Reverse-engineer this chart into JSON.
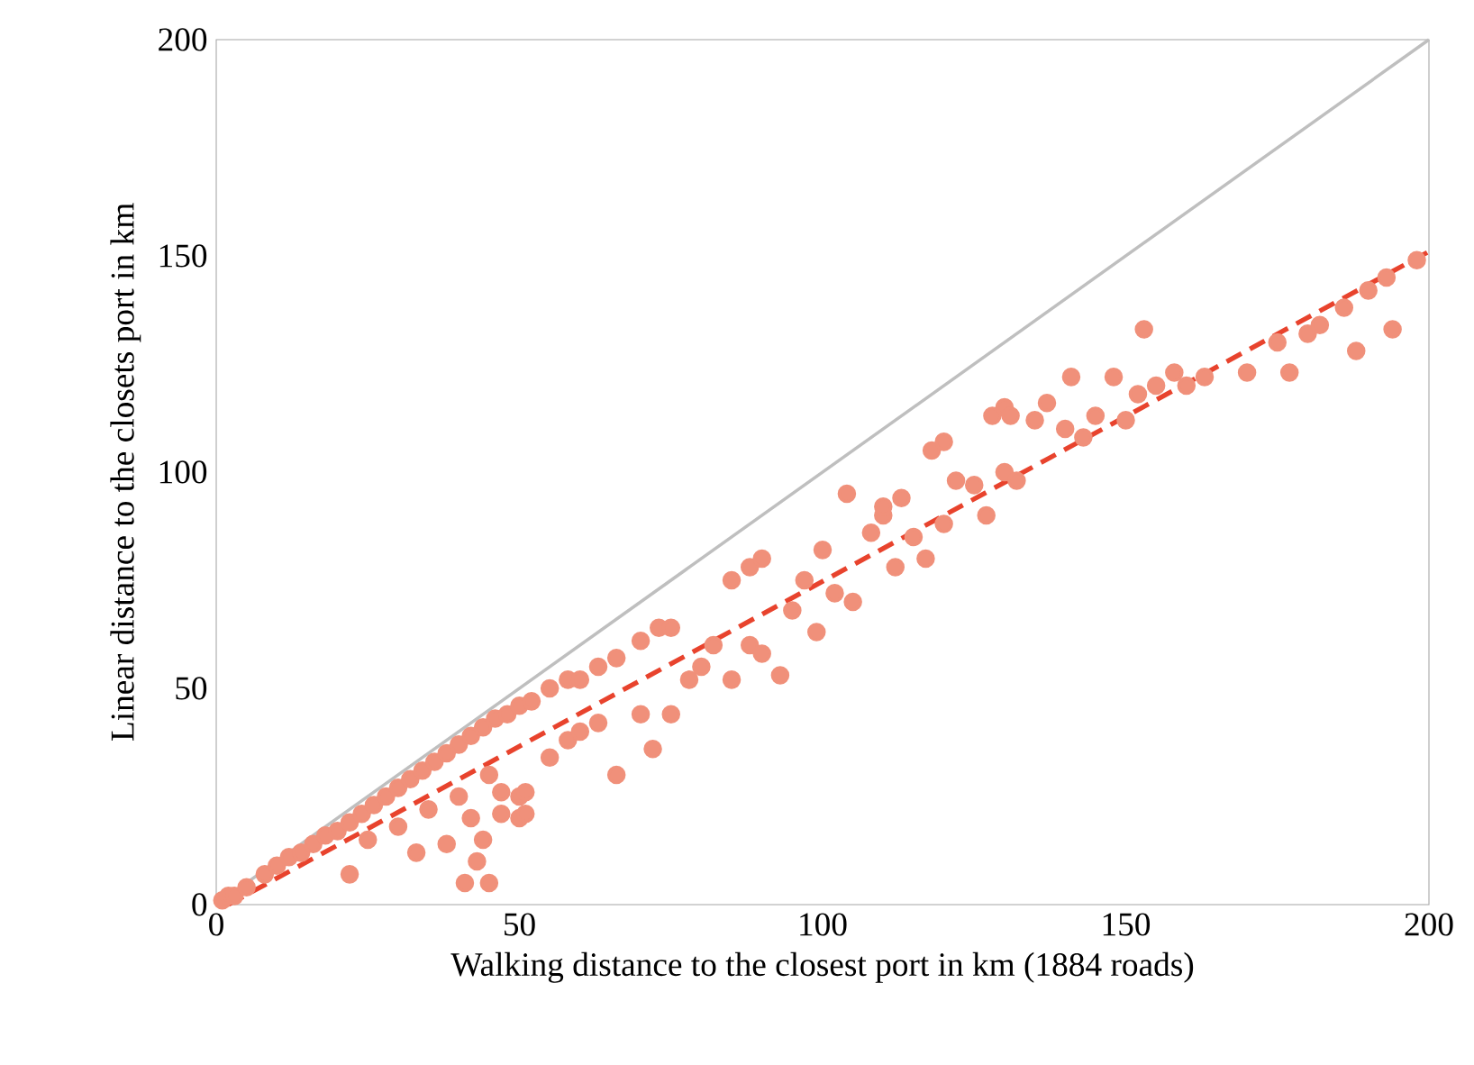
{
  "chart_data": {
    "type": "scatter",
    "xlabel": "Walking distance to the closest port in km (1884 roads)",
    "ylabel": "Linear distance to the closets port in km",
    "xlim": [
      0,
      200
    ],
    "ylim": [
      0,
      200
    ],
    "xticks": [
      0,
      50,
      100,
      150,
      200
    ],
    "yticks": [
      0,
      50,
      100,
      150,
      200
    ],
    "grid": false,
    "series": [
      {
        "type": "line",
        "color": "#bfbfbf",
        "line_style": "solid",
        "marker": "none",
        "x": [
          0,
          200
        ],
        "values": [
          0,
          200
        ]
      },
      {
        "color": "#f0907a",
        "marker": "circle",
        "x": [
          1,
          2,
          3,
          5,
          8,
          10,
          12,
          14,
          16,
          18,
          20,
          22,
          24,
          26,
          28,
          30,
          32,
          34,
          36,
          38,
          40,
          42,
          44,
          46,
          48,
          50,
          52,
          55,
          58,
          60,
          63,
          66,
          70,
          73,
          75,
          22,
          25,
          30,
          33,
          35,
          38,
          40,
          42,
          45,
          50,
          50,
          55,
          58,
          60,
          63,
          66,
          70,
          72,
          75,
          78,
          80,
          82,
          85,
          88,
          90,
          93,
          95,
          97,
          99,
          100,
          102,
          105,
          108,
          110,
          112,
          113,
          115,
          117,
          118,
          120,
          122,
          125,
          127,
          130,
          130,
          132,
          135,
          137,
          140,
          141,
          143,
          145,
          148,
          150,
          152,
          153,
          155,
          158,
          160,
          163,
          170,
          175,
          177,
          180,
          182,
          186,
          188,
          190,
          193,
          194,
          198,
          85,
          88,
          90,
          104,
          110,
          120,
          128,
          131,
          41,
          45,
          43,
          44,
          47,
          51,
          47,
          51
        ],
        "values": [
          1,
          2,
          2,
          4,
          7,
          9,
          11,
          12,
          14,
          16,
          17,
          19,
          21,
          23,
          25,
          27,
          29,
          31,
          33,
          35,
          37,
          39,
          41,
          43,
          44,
          46,
          47,
          50,
          52,
          52,
          55,
          57,
          61,
          64,
          64,
          7,
          15,
          18,
          12,
          22,
          14,
          25,
          20,
          30,
          25,
          20,
          34,
          38,
          40,
          42,
          30,
          44,
          36,
          44,
          52,
          55,
          60,
          52,
          60,
          58,
          53,
          68,
          75,
          63,
          82,
          72,
          70,
          86,
          90,
          78,
          94,
          85,
          80,
          105,
          88,
          98,
          97,
          90,
          100,
          115,
          98,
          112,
          116,
          110,
          122,
          108,
          113,
          122,
          112,
          118,
          133,
          120,
          123,
          120,
          122,
          123,
          130,
          123,
          132,
          134,
          138,
          128,
          142,
          145,
          133,
          149,
          75,
          78,
          80,
          95,
          92,
          107,
          113,
          113,
          5,
          5,
          10,
          15,
          21,
          21,
          26,
          26
        ]
      },
      {
        "type": "line",
        "color": "#e8432d",
        "line_style": "dashed",
        "marker": "none",
        "x": [
          2,
          200
        ],
        "values": [
          0,
          151
        ]
      }
    ]
  }
}
